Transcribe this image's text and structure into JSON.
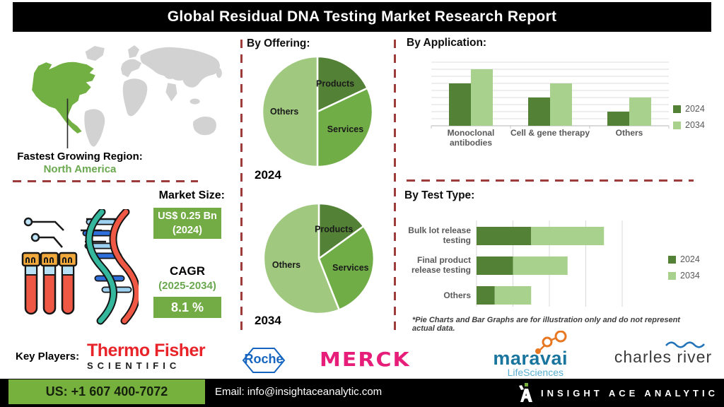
{
  "title": "Global Residual DNA Testing Market Research Report",
  "region": {
    "heading": "Fastest Growing Region:",
    "value": "North America"
  },
  "market_size": {
    "heading": "Market Size:",
    "value_box": "US$ 0.25 Bn",
    "value_year": "(2024)",
    "cagr_label": "CAGR",
    "cagr_period": "(2025-2034)",
    "cagr_value": "8.1 %"
  },
  "chart_data": [
    {
      "id": "offering-2024",
      "type": "pie",
      "title": "By Offering:",
      "year_label": "2024",
      "labels": [
        "Products",
        "Services",
        "Others"
      ],
      "values": [
        18,
        32,
        50
      ],
      "colors": [
        "#538135",
        "#70ad47",
        "#a0c97f"
      ]
    },
    {
      "id": "offering-2034",
      "type": "pie",
      "year_label": "2034",
      "labels": [
        "Products",
        "Services",
        "Others"
      ],
      "values": [
        15,
        29,
        56
      ],
      "colors": [
        "#538135",
        "#70ad47",
        "#a0c97f"
      ]
    },
    {
      "id": "application",
      "type": "bar",
      "title": "By Application:",
      "categories": [
        "Monoclonal antibodies",
        "Cell & gene therapy",
        "Others"
      ],
      "series": [
        {
          "name": "2024",
          "values": [
            6,
            4,
            2
          ],
          "color": "#538135"
        },
        {
          "name": "2034",
          "values": [
            8,
            6,
            4
          ],
          "color": "#a9d18e"
        }
      ],
      "ylim": [
        0,
        9
      ],
      "grid": true,
      "legend_position": "right"
    },
    {
      "id": "test_type",
      "type": "bar",
      "orientation": "horizontal",
      "stacked": true,
      "title": "By Test Type:",
      "categories": [
        "Bulk lot release testing",
        "Final product release testing",
        "Others"
      ],
      "series": [
        {
          "name": "2024",
          "values": [
            1.5,
            1,
            0.5
          ],
          "color": "#538135"
        },
        {
          "name": "2034",
          "values": [
            2,
            1.5,
            1
          ],
          "color": "#a9d18e"
        }
      ],
      "xlim": [
        0,
        4
      ],
      "grid": true,
      "legend_position": "right"
    }
  ],
  "note": "*Pie Charts and Bar Graphs are for illustration only and do not represent actual data.",
  "key_players": {
    "label": "Key Players:",
    "companies": [
      {
        "name": "Thermo Fisher Scientific",
        "line1": "Thermo Fisher",
        "line2": "SCIENTIFIC"
      },
      {
        "name": "Roche",
        "text": "Roche"
      },
      {
        "name": "Merck",
        "text": "MERCK"
      },
      {
        "name": "Maravai LifeSciences",
        "line1": "maravai",
        "line2": "LifeSciences"
      },
      {
        "name": "Charles River",
        "text": "charles river"
      }
    ]
  },
  "footer": {
    "phone": "US: +1 607 400-7072",
    "email": "Email: info@insightaceanalytic.com",
    "brand": "INSIGHT ACE ANALYTIC"
  },
  "colors": {
    "dark_green": "#538135",
    "mid_green": "#70ad47",
    "light_green": "#a9d18e",
    "map_highlight": "#72b043",
    "map_base": "#d2d2d2",
    "dashed_line": "#9e3b3b",
    "accent_box_green": "#73ab44",
    "footer_green": "#76b13e"
  }
}
